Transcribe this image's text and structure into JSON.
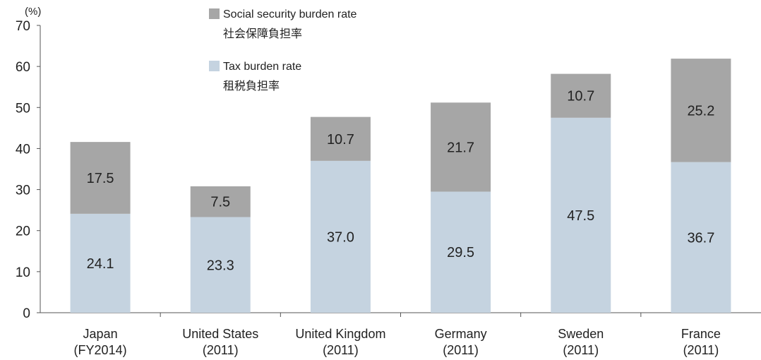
{
  "chart_data": {
    "type": "bar",
    "stacked": true,
    "unit": "(%)",
    "ylim": [
      0,
      70
    ],
    "yticks": [
      0,
      10,
      20,
      30,
      40,
      50,
      60,
      70
    ],
    "categories": [
      [
        "Japan",
        "(FY2014)"
      ],
      [
        "United States",
        "(2011)"
      ],
      [
        "United Kingdom",
        "(2011)"
      ],
      [
        "Germany",
        "(2011)"
      ],
      [
        "Sweden",
        "(2011)"
      ],
      [
        "France",
        "(2011)"
      ]
    ],
    "series": [
      {
        "name": "Tax burden rate",
        "name_ja": "租税負担率",
        "color": "#c5d3e0",
        "values": [
          24.1,
          23.3,
          37.0,
          29.5,
          47.5,
          36.7
        ],
        "labels": [
          "24.1",
          "23.3",
          "37.0",
          "29.5",
          "47.5",
          "36.7"
        ]
      },
      {
        "name": "Social security burden rate",
        "name_ja": "社会保障負担率",
        "color": "#a6a6a6",
        "values": [
          17.5,
          7.5,
          10.7,
          21.7,
          10.7,
          25.2
        ],
        "labels": [
          "17.5",
          "7.5",
          "10.7",
          "21.7",
          "10.7",
          "25.2"
        ]
      }
    ],
    "legend_order": [
      1,
      0
    ],
    "legend_position": "top-center",
    "grid": false,
    "axis_color": "#555555",
    "text_color": "#222222"
  }
}
